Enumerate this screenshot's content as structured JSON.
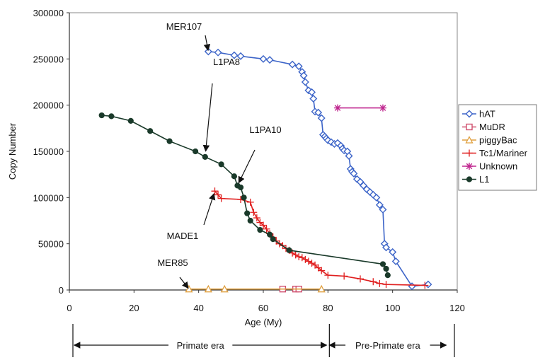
{
  "chart_data": {
    "type": "line",
    "xlabel": "Age (My)",
    "ylabel": "Copy Number",
    "xlim": [
      0,
      120
    ],
    "ylim": [
      0,
      300000
    ],
    "xticks": [
      0,
      20,
      40,
      60,
      80,
      100,
      120
    ],
    "yticks": [
      0,
      50000,
      100000,
      150000,
      200000,
      250000,
      300000
    ],
    "grid": "horizontal",
    "legend_position": "right",
    "series": [
      {
        "name": "hAT",
        "color": "#3c64c8",
        "marker": "diamond",
        "x": [
          43,
          46,
          51,
          53,
          60,
          62,
          69,
          71,
          72,
          72.5,
          73,
          74,
          75,
          75.5,
          76,
          77,
          78,
          78.5,
          79,
          79.5,
          80,
          81,
          82,
          83,
          84,
          84.5,
          85,
          86,
          86.5,
          87,
          87.5,
          88,
          89,
          90,
          91,
          92,
          93,
          94,
          95,
          96,
          97,
          97.5,
          98,
          100,
          101,
          106,
          111
        ],
        "y": [
          258000,
          257000,
          254000,
          253000,
          250000,
          249000,
          244000,
          242000,
          236000,
          232000,
          225000,
          216000,
          214000,
          207000,
          193000,
          192000,
          186000,
          168000,
          166000,
          164000,
          162000,
          160000,
          158000,
          159000,
          156000,
          153000,
          151000,
          150000,
          145000,
          131000,
          128000,
          126000,
          120000,
          117000,
          113000,
          109000,
          106000,
          103000,
          100000,
          92000,
          87000,
          50000,
          46000,
          41000,
          31000,
          4000,
          6000
        ]
      },
      {
        "name": "MuDR",
        "color": "#d0506e",
        "marker": "square",
        "x": [
          66,
          70,
          71
        ],
        "y": [
          1000,
          1000,
          1000
        ]
      },
      {
        "name": "piggyBac",
        "color": "#e0a040",
        "marker": "triangle",
        "x": [
          37,
          43,
          48,
          78
        ],
        "y": [
          1000,
          1000,
          1000,
          1000
        ]
      },
      {
        "name": "Tc1/Mariner",
        "color": "#e02020",
        "marker": "plus",
        "x": [
          45,
          46,
          47,
          53,
          56,
          57,
          58,
          59,
          60,
          61,
          62,
          63,
          64,
          65,
          66,
          67,
          68,
          69,
          70,
          71,
          72,
          73,
          74,
          75,
          76,
          77,
          78,
          80,
          85,
          90,
          94,
          96,
          98,
          110
        ],
        "y": [
          107000,
          103000,
          99000,
          98000,
          95000,
          84000,
          78000,
          73000,
          70000,
          66000,
          61000,
          57000,
          53000,
          50000,
          48000,
          45000,
          43000,
          40000,
          38000,
          36000,
          35000,
          33000,
          31000,
          29000,
          27000,
          24000,
          21000,
          16000,
          15000,
          12000,
          9000,
          7000,
          6000,
          5000
        ]
      },
      {
        "name": "Unknown",
        "color": "#c02890",
        "marker": "star",
        "x": [
          83,
          97
        ],
        "y": [
          197000,
          197000
        ]
      },
      {
        "name": "L1",
        "color": "#1a3a2a",
        "marker": "circle",
        "x": [
          10,
          13,
          19,
          25,
          31,
          39,
          42,
          47,
          51,
          52,
          53,
          54,
          55,
          56,
          59,
          62,
          63,
          68,
          97,
          98,
          98.5
        ],
        "y": [
          189000,
          188000,
          183000,
          172000,
          161000,
          150000,
          144000,
          136000,
          123000,
          113000,
          111000,
          100000,
          83000,
          75000,
          65000,
          60000,
          55000,
          43000,
          28000,
          23000,
          16000
        ]
      }
    ],
    "annotations": [
      {
        "text": "MER107",
        "x": 43,
        "y": 258000
      },
      {
        "text": "L1PA8",
        "x": 42,
        "y": 144000
      },
      {
        "text": "L1PA10",
        "x": 52,
        "y": 113000
      },
      {
        "text": "MADE1",
        "x": 45,
        "y": 107000
      },
      {
        "text": "MER85",
        "x": 37,
        "y": 1000
      }
    ],
    "eras": [
      {
        "label": "Primate era",
        "from": 1,
        "to": 80
      },
      {
        "label": "Pre-Primate era",
        "from": 80,
        "to": 117
      }
    ]
  }
}
